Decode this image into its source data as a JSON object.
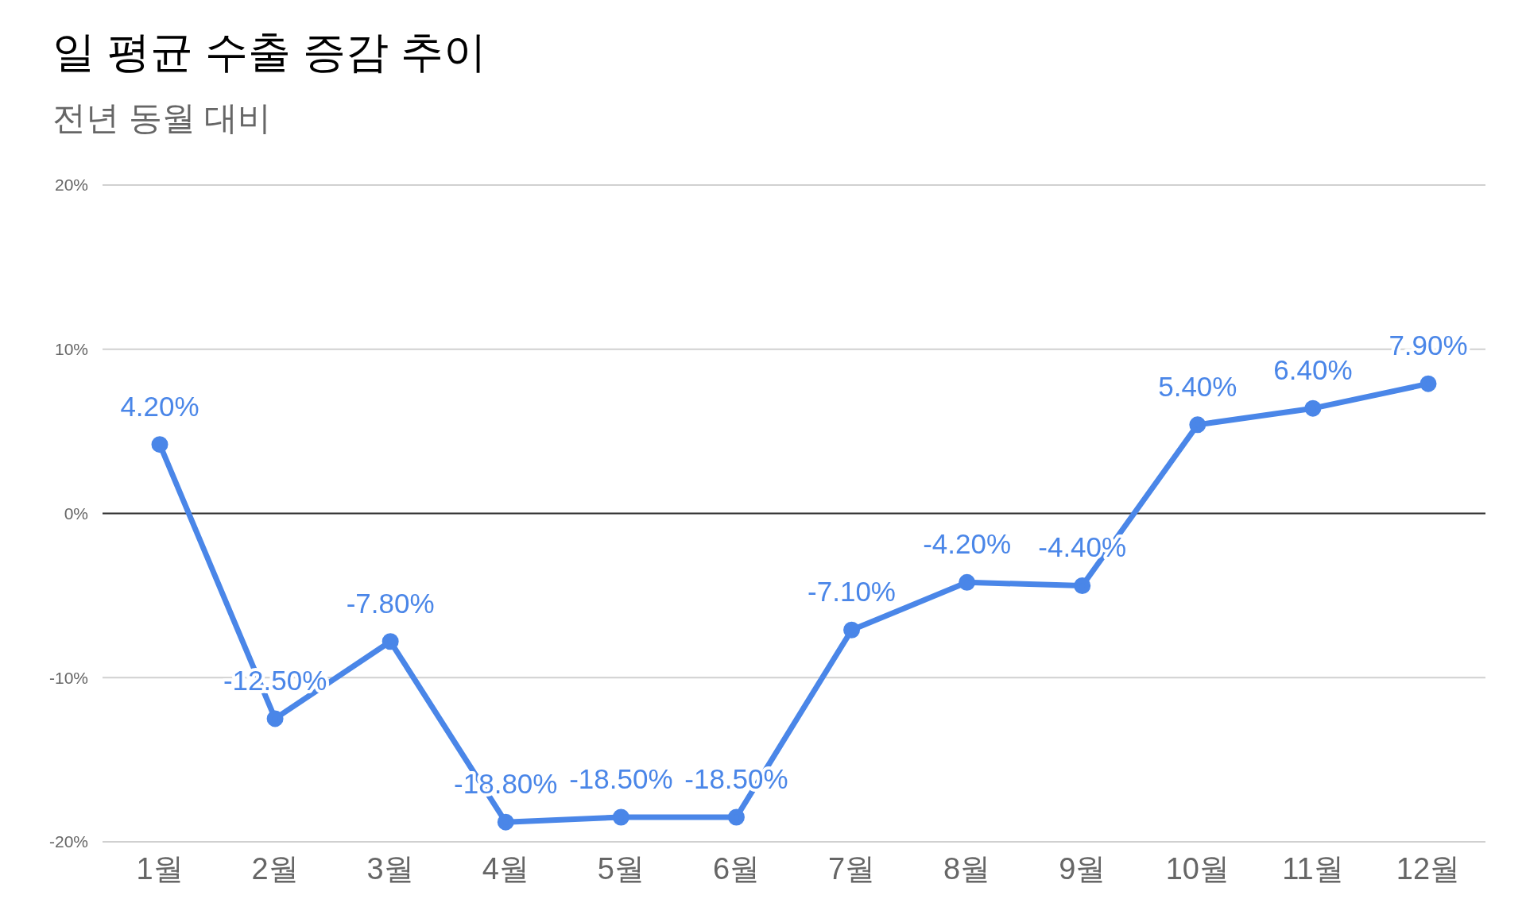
{
  "chart_data": {
    "type": "line",
    "title": "일 평균 수출 증감 추이",
    "subtitle": "전년 동월 대비",
    "categories": [
      "1월",
      "2월",
      "3월",
      "4월",
      "5월",
      "6월",
      "7월",
      "8월",
      "9월",
      "10월",
      "11월",
      "12월"
    ],
    "series": [
      {
        "color": "#4a86e8",
        "values": [
          4.2,
          -12.5,
          -7.8,
          -18.8,
          -18.5,
          -18.5,
          -7.1,
          -4.2,
          -4.4,
          5.4,
          6.4,
          7.9
        ],
        "value_labels": [
          "4.20%",
          "-12.50%",
          "-7.80%",
          "-18.80%",
          "-18.50%",
          "-18.50%",
          "-7.10%",
          "-4.20%",
          "-4.40%",
          "5.40%",
          "6.40%",
          "7.90%"
        ]
      }
    ],
    "ylim": [
      -20,
      20
    ],
    "yticks": [
      {
        "value": -20,
        "label": "-20%"
      },
      {
        "value": -10,
        "label": "-10%"
      },
      {
        "value": 0,
        "label": "0%"
      },
      {
        "value": 10,
        "label": "10%"
      },
      {
        "value": 20,
        "label": "20%"
      }
    ],
    "ref_lines": [
      {
        "axis": "y",
        "value": 0,
        "color": "#333333"
      }
    ],
    "grid": "y",
    "marker": "circle",
    "line_style": "solid"
  }
}
